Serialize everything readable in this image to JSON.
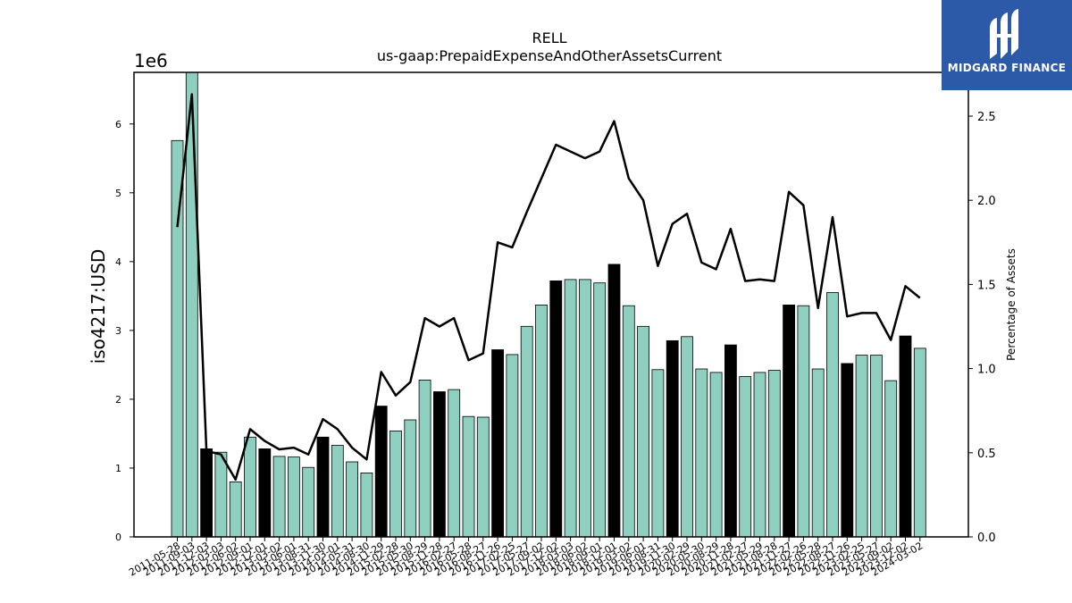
{
  "chart_data": {
    "type": "bar",
    "title": "RELL",
    "subtitle": "us-gaap:PrepaidExpenseAndOtherAssetsCurrent",
    "ylabel": "iso4217:USD",
    "y2label": "Percentage of Assets",
    "y_offset_label": "1e6",
    "ylim": [
      0,
      6750000
    ],
    "y2lim": [
      0,
      2.76
    ],
    "yticks": [
      0,
      1000000,
      2000000,
      3000000,
      4000000,
      5000000,
      6000000
    ],
    "ytick_labels": [
      "0",
      "1",
      "2",
      "3",
      "4",
      "5",
      "6"
    ],
    "y2ticks": [
      0.0,
      0.5,
      1.0,
      1.5,
      2.0,
      2.5
    ],
    "y2tick_labels": [
      "0.0",
      "0.5",
      "1.0",
      "1.5",
      "2.0",
      "2.5"
    ],
    "grid": false,
    "colors": {
      "bar_default": "#8ecfc0",
      "bar_highlight": "#000000",
      "line": "#000000"
    },
    "categories": [
      "2011-05-28",
      "2011-09-03",
      "2011-12-03",
      "2012-03-03",
      "2012-06-02",
      "2012-09-01",
      "2012-12-01",
      "2013-03-02",
      "2013-06-01",
      "2013-08-31",
      "2013-11-30",
      "2014-03-01",
      "2014-05-31",
      "2014-08-30",
      "2014-11-29",
      "2015-02-28",
      "2015-05-30",
      "2015-08-29",
      "2015-11-28",
      "2016-02-27",
      "2016-05-28",
      "2016-08-27",
      "2016-11-26",
      "2017-02-25",
      "2017-05-27",
      "2017-09-02",
      "2017-12-02",
      "2018-03-03",
      "2018-06-02",
      "2018-09-01",
      "2018-12-01",
      "2019-03-02",
      "2019-06-01",
      "2019-08-31",
      "2019-11-30",
      "2020-02-29",
      "2020-05-30",
      "2020-08-29",
      "2020-11-28",
      "2021-02-27",
      "2021-05-29",
      "2021-08-28",
      "2021-11-27",
      "2022-02-26",
      "2022-05-28",
      "2022-08-27",
      "2022-11-26",
      "2023-02-25",
      "2023-05-27",
      "2023-09-02",
      "2023-12-02",
      "2024-03-02"
    ],
    "values": [
      5760000,
      6800000,
      1280000,
      1230000,
      800000,
      1450000,
      1280000,
      1170000,
      1160000,
      1010000,
      1450000,
      1330000,
      1090000,
      930000,
      1900000,
      1540000,
      1700000,
      2280000,
      2110000,
      2140000,
      1750000,
      1740000,
      2720000,
      2650000,
      3060000,
      3370000,
      3720000,
      3740000,
      3740000,
      3690000,
      3960000,
      3360000,
      3060000,
      2430000,
      2850000,
      2910000,
      2440000,
      2390000,
      2790000,
      2330000,
      2390000,
      2420000,
      3370000,
      3360000,
      2440000,
      3550000,
      2520000,
      2640000,
      2640000,
      2270000,
      2920000,
      2740000
    ],
    "highlight": [
      false,
      false,
      true,
      false,
      false,
      false,
      true,
      false,
      false,
      false,
      true,
      false,
      false,
      false,
      true,
      false,
      false,
      false,
      true,
      false,
      false,
      false,
      true,
      false,
      false,
      false,
      true,
      false,
      false,
      false,
      true,
      false,
      false,
      false,
      true,
      false,
      false,
      false,
      true,
      false,
      false,
      false,
      true,
      false,
      false,
      false,
      true,
      false,
      false,
      false,
      true,
      false
    ],
    "series": [
      {
        "name": "Percentage of Assets",
        "axis": "right",
        "type": "line",
        "values": [
          1.84,
          2.63,
          0.51,
          0.49,
          0.34,
          0.64,
          0.57,
          0.52,
          0.53,
          0.49,
          0.7,
          0.64,
          0.53,
          0.46,
          0.98,
          0.84,
          0.92,
          1.3,
          1.25,
          1.3,
          1.05,
          1.09,
          1.75,
          1.72,
          1.93,
          2.13,
          2.33,
          2.29,
          2.25,
          2.29,
          2.47,
          2.13,
          2.0,
          1.61,
          1.86,
          1.92,
          1.63,
          1.59,
          1.83,
          1.52,
          1.53,
          1.52,
          2.05,
          1.97,
          1.36,
          1.9,
          1.31,
          1.33,
          1.33,
          1.17,
          1.49,
          1.42
        ]
      }
    ]
  },
  "logo": {
    "name": "MIDGARD FINANCE"
  }
}
